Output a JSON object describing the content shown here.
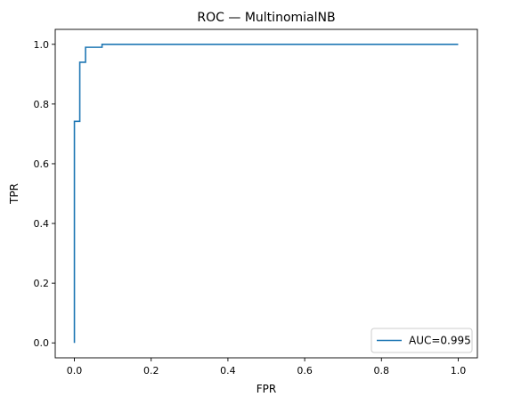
{
  "chart_data": {
    "type": "line",
    "title": "ROC — MultinomialNB",
    "xlabel": "FPR",
    "ylabel": "TPR",
    "xlim": [
      -0.05,
      1.05
    ],
    "ylim": [
      -0.05,
      1.05
    ],
    "xticks": [
      0.0,
      0.2,
      0.4,
      0.6,
      0.8,
      1.0
    ],
    "xtick_labels": [
      "0.0",
      "0.2",
      "0.4",
      "0.6",
      "0.8",
      "1.0"
    ],
    "yticks": [
      0.0,
      0.2,
      0.4,
      0.6,
      0.8,
      1.0
    ],
    "ytick_labels": [
      "0.0",
      "0.2",
      "0.4",
      "0.6",
      "0.8",
      "1.0"
    ],
    "grid": false,
    "legend_position": "lower-right",
    "series": [
      {
        "name": "AUC=0.995",
        "color": "#1f77b4",
        "x": [
          0.0,
          0.0,
          0.0,
          0.014,
          0.014,
          0.029,
          0.029,
          0.072,
          0.072,
          1.0
        ],
        "y": [
          0.0,
          0.742,
          0.742,
          0.742,
          0.94,
          0.94,
          0.99,
          0.99,
          1.0,
          1.0
        ]
      }
    ]
  }
}
